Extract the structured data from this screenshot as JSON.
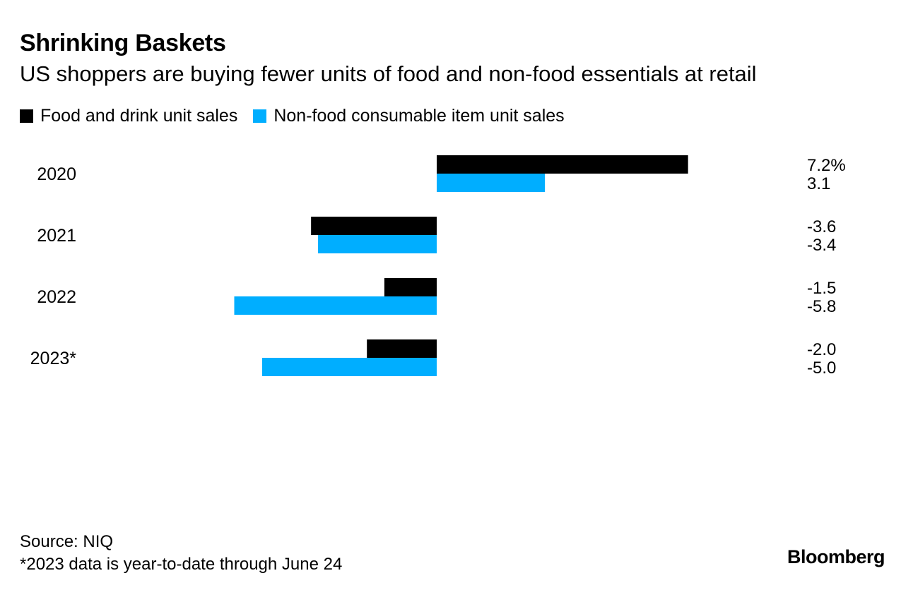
{
  "header": {
    "title": "Shrinking Baskets",
    "subtitle": "US shoppers are buying fewer units of food and non-food essentials at retail"
  },
  "legend": [
    {
      "label": "Food and drink unit sales",
      "color": "#000000"
    },
    {
      "label": "Non-food consumable item unit sales",
      "color": "#00aeff"
    }
  ],
  "chart_data": {
    "type": "bar",
    "orientation": "horizontal",
    "title": "Shrinking Baskets",
    "subtitle": "US shoppers are buying fewer units of food and non-food essentials at retail",
    "categories": [
      "2020",
      "2021",
      "2022",
      "2023*"
    ],
    "series": [
      {
        "name": "Food and drink unit sales",
        "color": "#000000",
        "values": [
          7.2,
          -3.6,
          -1.5,
          -2.0
        ],
        "labels": [
          "7.2%",
          "-3.6",
          "-1.5",
          "-2.0"
        ]
      },
      {
        "name": "Non-food consumable item unit sales",
        "color": "#00aeff",
        "values": [
          3.1,
          -3.4,
          -5.8,
          -5.0
        ],
        "labels": [
          "3.1",
          "-3.4",
          "-5.8",
          "-5.0"
        ]
      }
    ],
    "unit": "%",
    "xlim": [
      -6.0,
      8.0
    ],
    "grid": false,
    "legend_position": "top-left"
  },
  "footer": {
    "source": "Source: NIQ",
    "note": "*2023 data is year-to-date through June 24"
  },
  "brand": "Bloomberg"
}
